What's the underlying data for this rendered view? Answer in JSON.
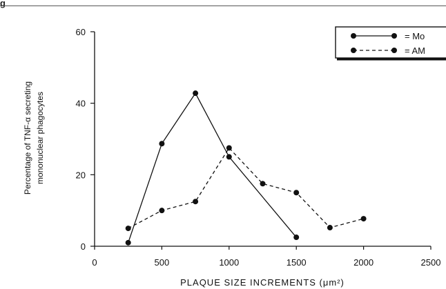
{
  "figure": {
    "label": "g"
  },
  "chart_data": {
    "type": "line",
    "title": "",
    "xlabel": "PLAQUE SIZE INCREMENTS (μm²)",
    "ylabel_lines": [
      "Percentage of TNF-α secreting",
      "mononuclear phagocytes"
    ],
    "xlim": [
      0,
      2500
    ],
    "ylim": [
      0,
      60
    ],
    "xticks": [
      0,
      500,
      1000,
      1500,
      2000,
      2500
    ],
    "yticks": [
      0,
      20,
      40,
      60
    ],
    "grid": false,
    "legend_position": "top-right",
    "series": [
      {
        "name": "= Mo",
        "style": "solid",
        "x": [
          250,
          500,
          750,
          1000,
          1500
        ],
        "y": [
          1,
          28.7,
          42.8,
          25,
          2.5
        ]
      },
      {
        "name": "= AM",
        "style": "dashed",
        "x": [
          250,
          500,
          750,
          1000,
          1250,
          1500,
          1750,
          2000
        ],
        "y": [
          5,
          10,
          12.5,
          27.5,
          17.5,
          15,
          5.2,
          7.7
        ]
      }
    ]
  }
}
